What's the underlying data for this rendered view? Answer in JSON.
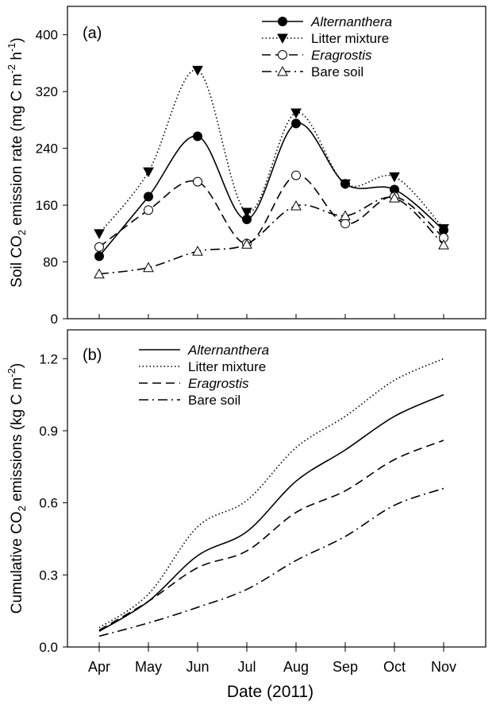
{
  "xlabel": "Date (2011)",
  "x_tick_labels": [
    "Apr",
    "May",
    "Jun",
    "Jul",
    "Aug",
    "Sep",
    "Oct",
    "Nov"
  ],
  "chart_data": [
    {
      "type": "line",
      "panel_label": "(a)",
      "ylabel_parts": [
        "Soil CO",
        "2",
        " emission rate (mg C m",
        "-2",
        " h",
        "-1",
        ")"
      ],
      "ylim": [
        0,
        440
      ],
      "yticks": [
        0,
        80,
        160,
        240,
        320,
        400
      ],
      "x": [
        "Apr",
        "May",
        "Jun",
        "Jul",
        "Aug",
        "Sep",
        "Oct",
        "Nov"
      ],
      "legend_position": "top-right",
      "series": [
        {
          "name": "Alternanthera",
          "italic": true,
          "line": "solid",
          "marker": "filled-circle",
          "values": [
            88,
            172,
            257,
            140,
            275,
            190,
            182,
            125
          ]
        },
        {
          "name": "Litter mixture",
          "italic": false,
          "line": "dotted",
          "marker": "filled-triangle-down",
          "values": [
            120,
            207,
            350,
            150,
            290,
            190,
            200,
            127
          ]
        },
        {
          "name": "Eragrostis",
          "italic": true,
          "line": "dashed",
          "marker": "open-circle",
          "values": [
            101,
            153,
            193,
            106,
            202,
            134,
            172,
            114
          ]
        },
        {
          "name": "Bare soil",
          "italic": false,
          "line": "dashdot",
          "marker": "open-triangle-up",
          "values": [
            63,
            72,
            95,
            105,
            159,
            145,
            170,
            104
          ]
        }
      ]
    },
    {
      "type": "line",
      "panel_label": "(b)",
      "ylabel_parts": [
        "Cumulative CO",
        "2",
        " emissions (kg C m",
        "-2",
        ")"
      ],
      "ylim": [
        0,
        1.32
      ],
      "yticks": [
        0.0,
        0.3,
        0.6,
        0.9,
        1.2
      ],
      "ytick_labels": [
        "0.0",
        "0.3",
        "0.6",
        "0.9",
        "1.2"
      ],
      "x": [
        "Apr",
        "May",
        "Jun",
        "Jul",
        "Aug",
        "Sep",
        "Oct",
        "Nov"
      ],
      "legend_position": "top-left",
      "series": [
        {
          "name": "Alternanthera",
          "italic": true,
          "line": "solid",
          "values": [
            0.065,
            0.19,
            0.38,
            0.48,
            0.69,
            0.82,
            0.96,
            1.05
          ]
        },
        {
          "name": "Litter mixture",
          "italic": false,
          "line": "dotted",
          "values": [
            0.08,
            0.22,
            0.5,
            0.61,
            0.83,
            0.96,
            1.11,
            1.2
          ]
        },
        {
          "name": "Eragrostis",
          "italic": true,
          "line": "dashed",
          "values": [
            0.07,
            0.19,
            0.33,
            0.4,
            0.56,
            0.65,
            0.78,
            0.86
          ]
        },
        {
          "name": "Bare soil",
          "italic": false,
          "line": "dashdot",
          "values": [
            0.045,
            0.1,
            0.165,
            0.24,
            0.36,
            0.46,
            0.59,
            0.66
          ]
        }
      ]
    }
  ]
}
